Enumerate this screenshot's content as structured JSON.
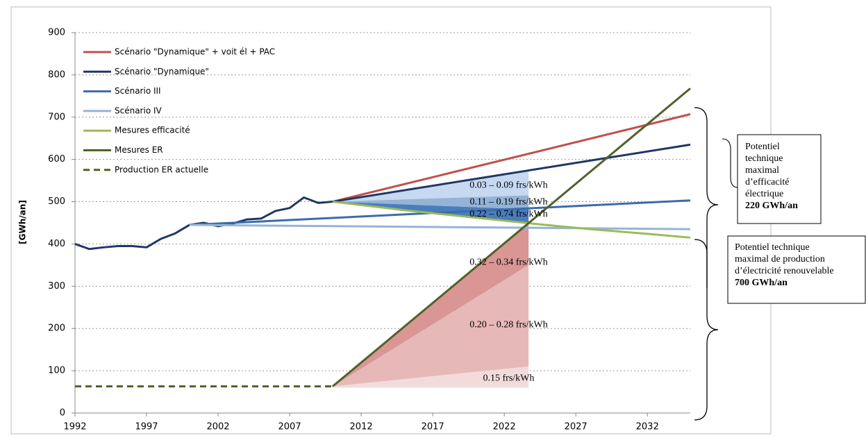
{
  "chart_data": {
    "type": "line",
    "y_label": "[GWh/an]",
    "xlim": [
      1992,
      2035
    ],
    "ylim": [
      0,
      900
    ],
    "xticks": [
      1992,
      1997,
      2002,
      2007,
      2012,
      2017,
      2022,
      2027,
      2032
    ],
    "yticks": [
      0,
      100,
      200,
      300,
      400,
      500,
      600,
      700,
      800,
      900
    ],
    "grid": true,
    "legend": "upper left",
    "series": [
      {
        "name": "Scénario \"Dynamique\" + voit él + PAC",
        "color": "#c0504d",
        "x": [
          2010,
          2035
        ],
        "values": [
          500,
          707
        ]
      },
      {
        "name": "Scénario \"Dynamique\"",
        "color": "#1f3864",
        "x": [
          1992,
          1993,
          1994,
          1995,
          1996,
          1997,
          1998,
          1999,
          2000,
          2001,
          2002,
          2003,
          2004,
          2005,
          2006,
          2007,
          2008,
          2009,
          2010,
          2035
        ],
        "values": [
          400,
          388,
          392,
          395,
          395,
          392,
          412,
          425,
          445,
          450,
          442,
          448,
          458,
          460,
          478,
          485,
          510,
          497,
          500,
          635
        ]
      },
      {
        "name": "Scénario III",
        "color": "#3d6bab",
        "x": [
          2000,
          2035
        ],
        "values": [
          445,
          503
        ]
      },
      {
        "name": "Scénario IV",
        "color": "#95b3d7",
        "x": [
          2000,
          2035
        ],
        "values": [
          445,
          435
        ]
      },
      {
        "name": "Mesures efficacité",
        "color": "#9bbb59",
        "x": [
          2010,
          2015,
          2020,
          2024,
          2028,
          2032,
          2035
        ],
        "values": [
          500,
          480,
          462,
          448,
          435,
          424,
          415
        ]
      },
      {
        "name": "Mesures ER",
        "color": "#4f6228",
        "x": [
          2010,
          2035
        ],
        "values": [
          63,
          768
        ]
      },
      {
        "name": "Production ER actuelle",
        "color": "#4f6228",
        "dashed": true,
        "x": [
          1992,
          2010
        ],
        "values": [
          63,
          63
        ]
      }
    ],
    "regions": [
      {
        "label": "0.03 – 0.09 frs/kWh",
        "color": "#c6d9f1",
        "x": [
          2010,
          2023.7
        ],
        "upper": [
          500,
          572
        ],
        "lower": [
          500,
          515
        ]
      },
      {
        "label": "0.11 – 0.19 frs/kWh",
        "color": "#95b3d7",
        "x": [
          2010,
          2023.7
        ],
        "upper": [
          500,
          515
        ],
        "lower": [
          500,
          482
        ]
      },
      {
        "label": "0.22 – 0.74 frs/kWh",
        "color": "#4a7ebb",
        "x": [
          2010,
          2023.7
        ],
        "upper": [
          500,
          482
        ],
        "lower": [
          500,
          450
        ]
      },
      {
        "label": "0.32 – 0.34 frs/kWh",
        "color": "#d99694",
        "x": [
          2010,
          2023.7
        ],
        "upper": [
          63,
          450
        ],
        "lower": [
          63,
          350
        ]
      },
      {
        "label": "0.20 – 0.28 frs/kWh",
        "color": "#e6b9b8",
        "x": [
          2010,
          2023.7
        ],
        "upper": [
          63,
          350
        ],
        "lower": [
          63,
          110
        ]
      },
      {
        "label": "0.15 frs/kWh",
        "color": "#f2dcdb",
        "x": [
          2010,
          2023.7
        ],
        "upper": [
          63,
          110
        ],
        "lower": [
          60,
          60
        ]
      }
    ],
    "boxes": [
      {
        "lines": [
          "Potentiel",
          "technique",
          "maximal",
          "d’efficacité",
          "électrique"
        ],
        "value": "220 GWh/an"
      },
      {
        "lines": [
          "Potentiel technique",
          "maximal de production",
          "d’électricité renouvelable"
        ],
        "value": "700 GWh/an"
      }
    ]
  }
}
